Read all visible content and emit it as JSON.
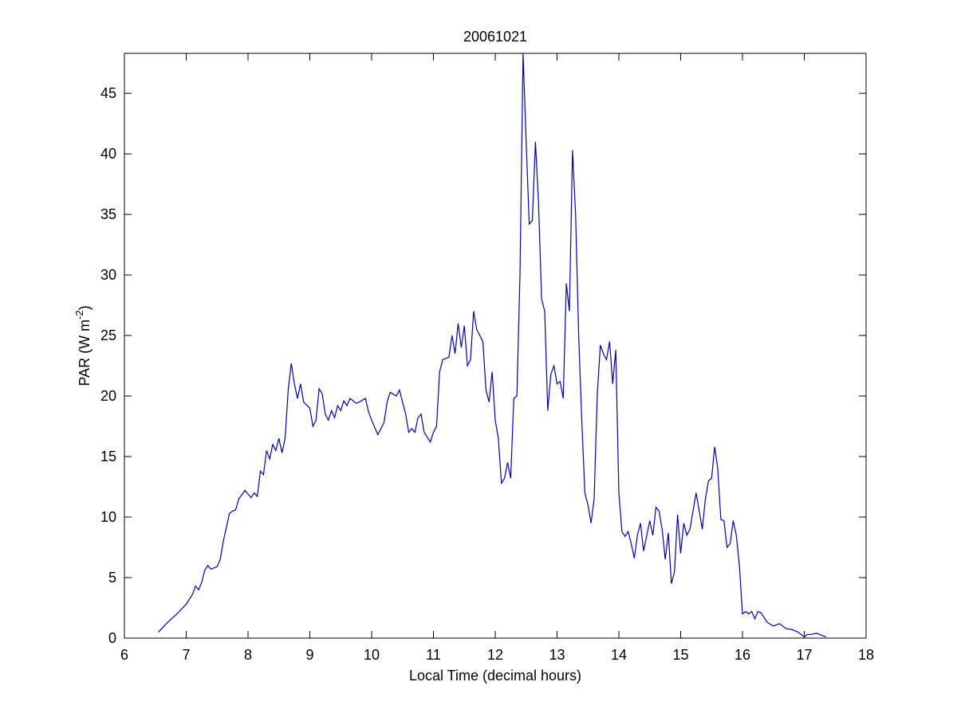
{
  "chart_data": {
    "type": "line",
    "title": "20061021",
    "xlabel": "Local Time (decimal hours)",
    "ylabel": {
      "text": "PAR (W m",
      "superscript": "-2",
      "suffix": ")"
    },
    "color": "#0000b0",
    "xlim": [
      6,
      18
    ],
    "xticks": [
      6,
      7,
      8,
      9,
      10,
      11,
      12,
      13,
      14,
      15,
      16,
      17,
      18
    ],
    "ylim": [
      0,
      48.3
    ],
    "yticks": [
      0,
      5,
      10,
      15,
      20,
      25,
      30,
      35,
      40,
      45
    ],
    "x": [
      6.55,
      6.7,
      6.85,
      7.0,
      7.1,
      7.15,
      7.2,
      7.25,
      7.3,
      7.35,
      7.4,
      7.5,
      7.55,
      7.6,
      7.7,
      7.75,
      7.8,
      7.85,
      7.95,
      8.05,
      8.1,
      8.15,
      8.2,
      8.25,
      8.3,
      8.35,
      8.4,
      8.45,
      8.5,
      8.55,
      8.6,
      8.65,
      8.7,
      8.75,
      8.8,
      8.85,
      8.9,
      9.0,
      9.05,
      9.1,
      9.15,
      9.2,
      9.25,
      9.3,
      9.35,
      9.4,
      9.45,
      9.5,
      9.55,
      9.6,
      9.65,
      9.75,
      9.8,
      9.9,
      9.95,
      10.0,
      10.1,
      10.2,
      10.25,
      10.3,
      10.4,
      10.45,
      10.55,
      10.6,
      10.65,
      10.7,
      10.75,
      10.8,
      10.85,
      10.95,
      11.0,
      11.05,
      11.1,
      11.15,
      11.25,
      11.3,
      11.35,
      11.4,
      11.45,
      11.5,
      11.55,
      11.6,
      11.65,
      11.7,
      11.8,
      11.85,
      11.9,
      11.95,
      12.0,
      12.05,
      12.1,
      12.15,
      12.2,
      12.25,
      12.3,
      12.35,
      12.4,
      12.45,
      12.5,
      12.55,
      12.6,
      12.65,
      12.7,
      12.75,
      12.8,
      12.85,
      12.9,
      12.95,
      13.0,
      13.05,
      13.1,
      13.15,
      13.2,
      13.25,
      13.3,
      13.35,
      13.4,
      13.45,
      13.5,
      13.55,
      13.6,
      13.65,
      13.7,
      13.75,
      13.8,
      13.85,
      13.9,
      13.95,
      14.0,
      14.05,
      14.1,
      14.15,
      14.2,
      14.25,
      14.3,
      14.35,
      14.4,
      14.5,
      14.55,
      14.6,
      14.65,
      14.7,
      14.75,
      14.8,
      14.85,
      14.9,
      14.95,
      15.0,
      15.05,
      15.1,
      15.15,
      15.25,
      15.3,
      15.35,
      15.4,
      15.45,
      15.5,
      15.55,
      15.6,
      15.65,
      15.7,
      15.75,
      15.8,
      15.85,
      15.9,
      15.95,
      16.0,
      16.05,
      16.1,
      16.15,
      16.2,
      16.25,
      16.3,
      16.4,
      16.5,
      16.6,
      16.7,
      16.8,
      16.9,
      17.0,
      17.05,
      17.1,
      17.2,
      17.3,
      17.35
    ],
    "values": [
      0.5,
      1.3,
      2.0,
      2.8,
      3.6,
      4.3,
      4.0,
      4.6,
      5.6,
      6.0,
      5.7,
      5.9,
      6.5,
      8.0,
      10.3,
      10.5,
      10.6,
      11.5,
      12.2,
      11.6,
      12.0,
      11.7,
      13.8,
      13.5,
      15.5,
      14.8,
      16.0,
      15.5,
      16.5,
      15.3,
      16.5,
      20.5,
      22.7,
      21.0,
      19.8,
      21.0,
      19.5,
      19.0,
      17.5,
      18.0,
      20.6,
      20.2,
      18.5,
      18.0,
      18.8,
      18.2,
      19.2,
      18.8,
      19.6,
      19.2,
      19.8,
      19.4,
      19.5,
      19.8,
      18.7,
      18.0,
      16.8,
      17.8,
      19.5,
      20.3,
      20.0,
      20.5,
      18.5,
      17.0,
      17.3,
      17.0,
      18.2,
      18.5,
      17.0,
      16.2,
      17.0,
      17.5,
      22.0,
      23.0,
      23.2,
      25.0,
      23.5,
      26.0,
      24.0,
      25.8,
      22.5,
      23.0,
      27.0,
      25.5,
      24.5,
      20.5,
      19.5,
      22.0,
      18.0,
      16.5,
      12.8,
      13.2,
      14.5,
      13.2,
      19.8,
      20.0,
      30.0,
      48.3,
      41.0,
      34.2,
      34.5,
      41.0,
      36.0,
      28.0,
      27.0,
      18.8,
      21.8,
      22.5,
      21.0,
      21.2,
      19.8,
      29.3,
      27.0,
      40.3,
      35.0,
      25.0,
      18.0,
      12.0,
      11.0,
      9.5,
      11.5,
      20.0,
      24.2,
      23.5,
      23.0,
      24.5,
      21.0,
      23.8,
      12.0,
      8.8,
      8.4,
      8.8,
      7.8,
      6.6,
      8.5,
      9.5,
      7.2,
      9.7,
      8.5,
      10.8,
      10.5,
      9.0,
      6.5,
      8.7,
      4.5,
      5.5,
      10.2,
      7.0,
      9.5,
      8.5,
      9.0,
      12.0,
      10.5,
      9.0,
      11.5,
      13.0,
      13.2,
      15.8,
      14.0,
      9.8,
      9.7,
      7.5,
      7.8,
      9.7,
      8.5,
      6.0,
      2.0,
      2.2,
      2.0,
      2.2,
      1.6,
      2.2,
      2.1,
      1.3,
      1.0,
      1.2,
      0.8,
      0.7,
      0.5,
      0.1,
      0.3,
      0.3,
      0.4,
      0.2,
      0.1
    ]
  }
}
